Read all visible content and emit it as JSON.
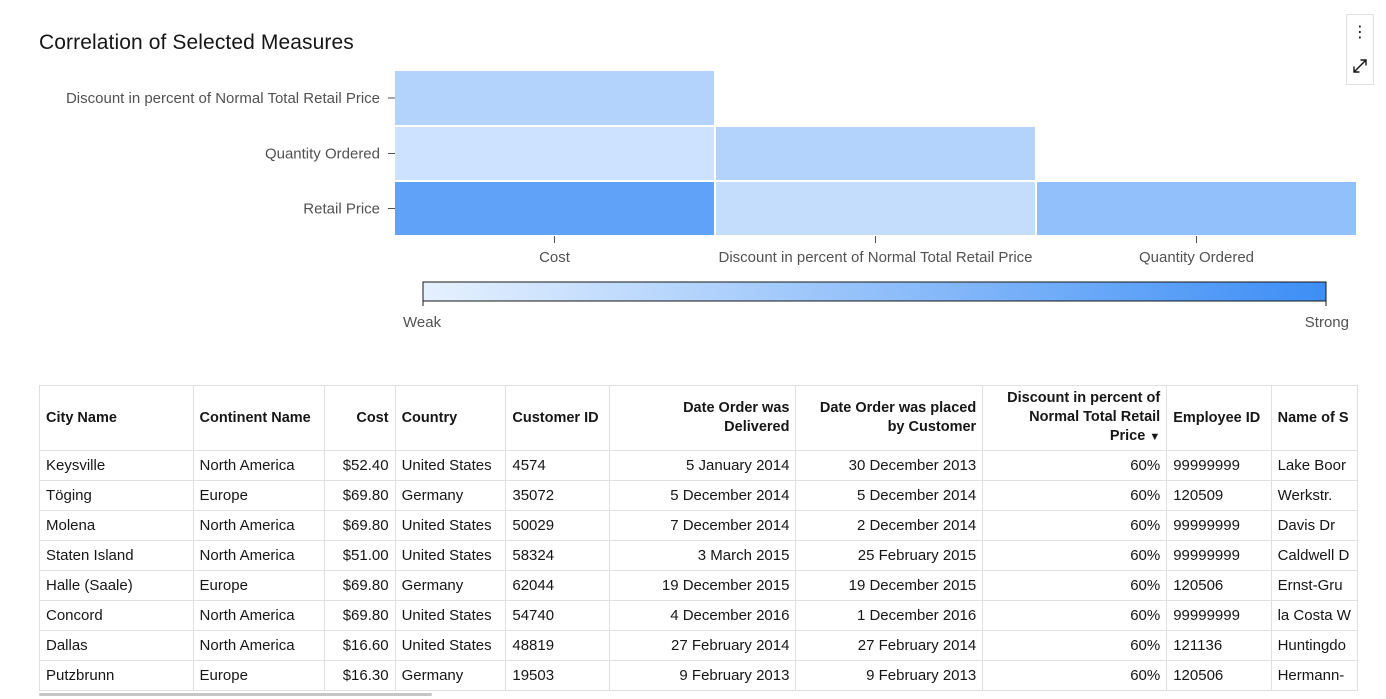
{
  "chart_data": {
    "type": "heatmap",
    "title": "Correlation of Selected Measures",
    "x_categories": [
      "Cost",
      "Discount in percent of Normal Total Retail Price",
      "Quantity Ordered"
    ],
    "y_categories": [
      "Discount in percent of Normal Total Retail Price",
      "Quantity Ordered",
      "Retail Price"
    ],
    "cells": [
      {
        "row": 0,
        "col": 0,
        "value": 0.3
      },
      {
        "row": 1,
        "col": 0,
        "value": 0.15
      },
      {
        "row": 1,
        "col": 1,
        "value": 0.3
      },
      {
        "row": 2,
        "col": 0,
        "value": 0.8
      },
      {
        "row": 2,
        "col": 1,
        "value": 0.2
      },
      {
        "row": 2,
        "col": 2,
        "value": 0.5
      }
    ],
    "color_scale": {
      "min_color": "#e6f1ff",
      "max_color": "#3d8ef5",
      "min_label": "Weak",
      "max_label": "Strong"
    },
    "legend_placement": "bottom"
  },
  "toolbar": {
    "icons": [
      "overflow-menu-icon",
      "maximize-icon"
    ]
  },
  "table": {
    "columns": [
      {
        "label": "City Name",
        "align": "l"
      },
      {
        "label": "Continent Name",
        "align": "l"
      },
      {
        "label": "Cost",
        "align": "r"
      },
      {
        "label": "Country",
        "align": "l"
      },
      {
        "label": "Customer ID",
        "align": "l"
      },
      {
        "label": "Date Order was Delivered",
        "align": "r"
      },
      {
        "label": "Date Order was placed by Customer",
        "align": "r"
      },
      {
        "label": "Discount in percent of Normal Total Retail Price",
        "align": "r",
        "sorted": true
      },
      {
        "label": "Employee ID",
        "align": "l"
      },
      {
        "label": "Name of S",
        "align": "l"
      }
    ],
    "rows": [
      [
        "Keysville",
        "North America",
        "$52.40",
        "United States",
        "4574",
        "5 January 2014",
        "30 December 2013",
        "60%",
        "99999999",
        "Lake Boor"
      ],
      [
        "Töging",
        "Europe",
        "$69.80",
        "Germany",
        "35072",
        "5 December 2014",
        "5 December 2014",
        "60%",
        "120509",
        "Werkstr."
      ],
      [
        "Molena",
        "North America",
        "$69.80",
        "United States",
        "50029",
        "7 December 2014",
        "2 December 2014",
        "60%",
        "99999999",
        "Davis Dr"
      ],
      [
        "Staten Island",
        "North America",
        "$51.00",
        "United States",
        "58324",
        "3 March 2015",
        "25 February 2015",
        "60%",
        "99999999",
        "Caldwell D"
      ],
      [
        "Halle (Saale)",
        "Europe",
        "$69.80",
        "Germany",
        "62044",
        "19 December 2015",
        "19 December 2015",
        "60%",
        "120506",
        "Ernst-Gru"
      ],
      [
        "Concord",
        "North America",
        "$69.80",
        "United States",
        "54740",
        "4 December 2016",
        "1 December 2016",
        "60%",
        "99999999",
        "la Costa W"
      ],
      [
        "Dallas",
        "North America",
        "$16.60",
        "United States",
        "48819",
        "27 February 2014",
        "27 February 2014",
        "60%",
        "121136",
        "Huntingdo"
      ],
      [
        "Putzbrunn",
        "Europe",
        "$16.30",
        "Germany",
        "19503",
        "9 February 2013",
        "9 February 2013",
        "60%",
        "120506",
        "Hermann-"
      ]
    ]
  }
}
